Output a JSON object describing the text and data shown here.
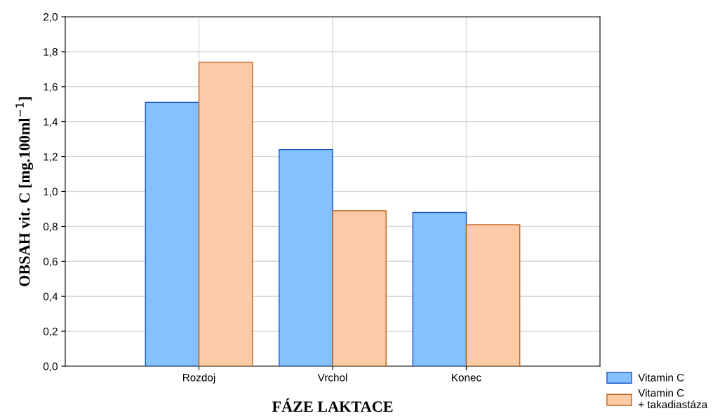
{
  "chart_data": {
    "type": "bar",
    "xlabel": "FÁZE LAKTACE",
    "ylabel": "OBSAH vit. C [mg.100ml$^{−1}$]",
    "categories": [
      "Rozdoj",
      "Vrchol",
      "Konec"
    ],
    "series": [
      {
        "name": "Vitamin C",
        "color": "#85c1ff",
        "values": [
          1.51,
          1.24,
          0.88
        ]
      },
      {
        "name": "Vitamin C\n+ takadiastáza",
        "color": "#facba6",
        "values": [
          1.74,
          0.89,
          0.81
        ]
      }
    ],
    "ylim": [
      0,
      2.0
    ],
    "yticks": [
      {
        "value": 0,
        "label": "0,0"
      },
      {
        "value": 0.2,
        "label": "0,2"
      },
      {
        "value": 0.4,
        "label": "0,4"
      },
      {
        "value": 0.6,
        "label": "0,6"
      },
      {
        "value": 0.8,
        "label": "0,8"
      },
      {
        "value": 1.0,
        "label": "1,0"
      },
      {
        "value": 1.2,
        "label": "1,2"
      },
      {
        "value": 1.4,
        "label": "1,4"
      },
      {
        "value": 1.6,
        "label": "1,6"
      },
      {
        "value": 1.8,
        "label": "1,8"
      },
      {
        "value": 2.0,
        "label": "2,0"
      }
    ],
    "grid": true,
    "legend": "bottom right"
  }
}
